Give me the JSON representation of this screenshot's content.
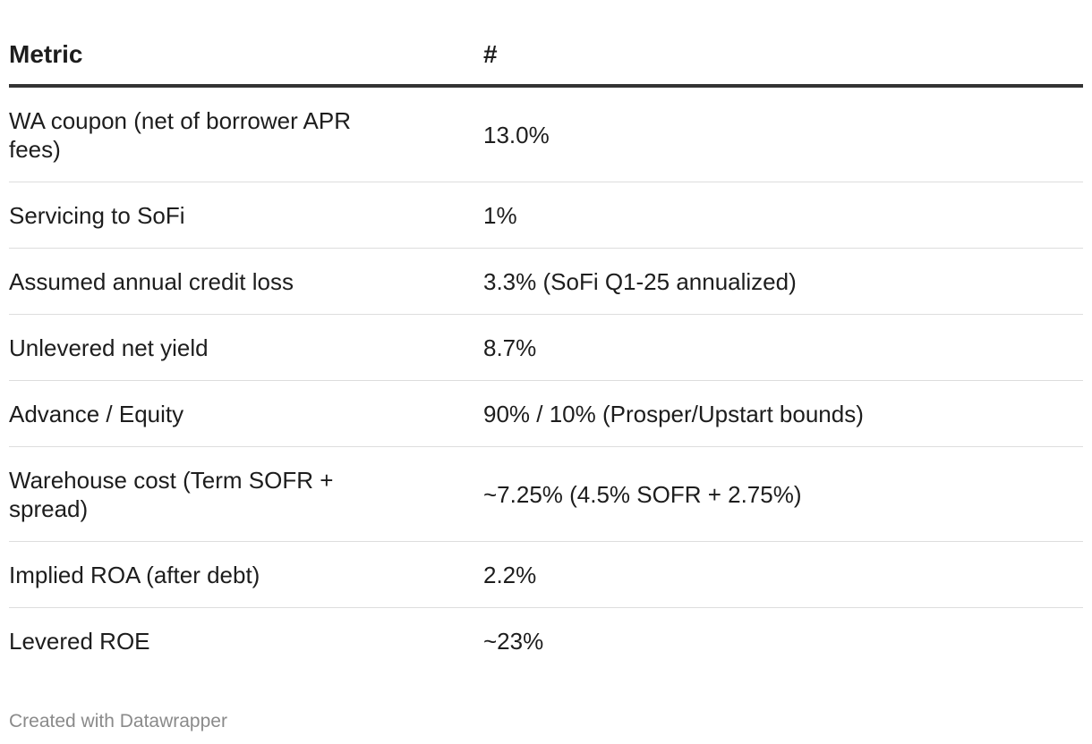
{
  "chart_data": {
    "type": "table",
    "columns": [
      "Metric",
      "#"
    ],
    "rows": [
      {
        "metric": "WA coupon (net of borrower APR fees)",
        "value": "13.0%"
      },
      {
        "metric": "Servicing to SoFi",
        "value": "1%"
      },
      {
        "metric": "Assumed annual credit loss",
        "value": "3.3% (SoFi Q1-25 annualized)"
      },
      {
        "metric": "Unlevered net yield",
        "value": "8.7%"
      },
      {
        "metric": "Advance / Equity",
        "value": "90% / 10% (Prosper/Upstart bounds)"
      },
      {
        "metric": "Warehouse cost (Term SOFR + spread)",
        "value": "~7.25% (4.5% SOFR + 2.75%)"
      },
      {
        "metric": "Implied ROA (after debt)",
        "value": "2.2%"
      },
      {
        "metric": "Levered ROE",
        "value": "~23%"
      }
    ]
  },
  "footer": {
    "credit": "Created with Datawrapper"
  }
}
